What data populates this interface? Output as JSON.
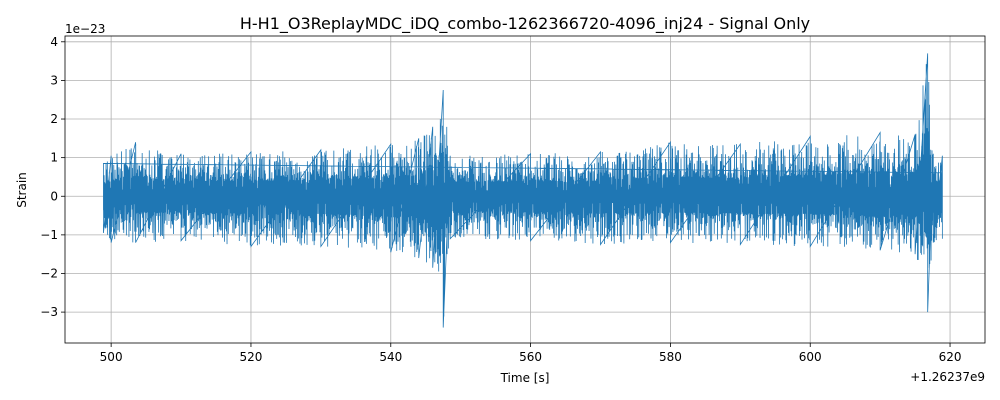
{
  "chart_data": {
    "type": "line",
    "title": "H-H1_O3ReplayMDC_iDQ_combo-1262366720-4096_inj24 - Signal Only",
    "xlabel": "Time [s]",
    "ylabel": "Strain",
    "x_offset_label": "+1.26237e9",
    "y_scale_label": "1e−23",
    "xlim": [
      493.4,
      625.0
    ],
    "ylim": [
      -3.8,
      4.15
    ],
    "x_ticks": [
      500,
      520,
      540,
      560,
      580,
      600,
      620
    ],
    "x_tick_labels": [
      "500",
      "520",
      "540",
      "560",
      "580",
      "600",
      "620"
    ],
    "y_ticks": [
      -3,
      -2,
      -1,
      0,
      1,
      2,
      3,
      4
    ],
    "y_tick_labels": [
      "−3",
      "−2",
      "−1",
      "0",
      "1",
      "2",
      "3",
      "4"
    ],
    "grid": true,
    "line_color": "#1f77b4",
    "series": [
      {
        "data_range": [
          498.9,
          618.9
        ],
        "envelope": [
          {
            "x": 498.9,
            "upper": 0.85,
            "lower": -0.95
          },
          {
            "x": 500,
            "upper": 1.05,
            "lower": -1.2
          },
          {
            "x": 503.5,
            "upper": 1.4,
            "lower": -1.2
          },
          {
            "x": 510,
            "upper": 1.1,
            "lower": -1.15
          },
          {
            "x": 520,
            "upper": 1.15,
            "lower": -1.3
          },
          {
            "x": 530,
            "upper": 1.2,
            "lower": -1.3
          },
          {
            "x": 540,
            "upper": 1.35,
            "lower": -1.45
          },
          {
            "x": 544,
            "upper": 1.5,
            "lower": -1.6
          },
          {
            "x": 546,
            "upper": 1.8,
            "lower": -1.85
          },
          {
            "x": 547.5,
            "upper": 2.75,
            "lower": -3.4
          },
          {
            "x": 548.5,
            "upper": 1.05,
            "lower": -1.1
          },
          {
            "x": 560,
            "upper": 1.1,
            "lower": -1.15
          },
          {
            "x": 570,
            "upper": 1.15,
            "lower": -1.25
          },
          {
            "x": 580,
            "upper": 1.4,
            "lower": -1.2
          },
          {
            "x": 590,
            "upper": 1.35,
            "lower": -1.25
          },
          {
            "x": 600,
            "upper": 1.55,
            "lower": -1.3
          },
          {
            "x": 610,
            "upper": 1.65,
            "lower": -1.4
          },
          {
            "x": 615,
            "upper": 1.6,
            "lower": -1.5
          },
          {
            "x": 616.8,
            "upper": 3.7,
            "lower": -3.0
          },
          {
            "x": 617.6,
            "upper": 1.1,
            "lower": -1.2
          },
          {
            "x": 618.9,
            "upper": 1.05,
            "lower": -1.1
          }
        ]
      }
    ]
  }
}
